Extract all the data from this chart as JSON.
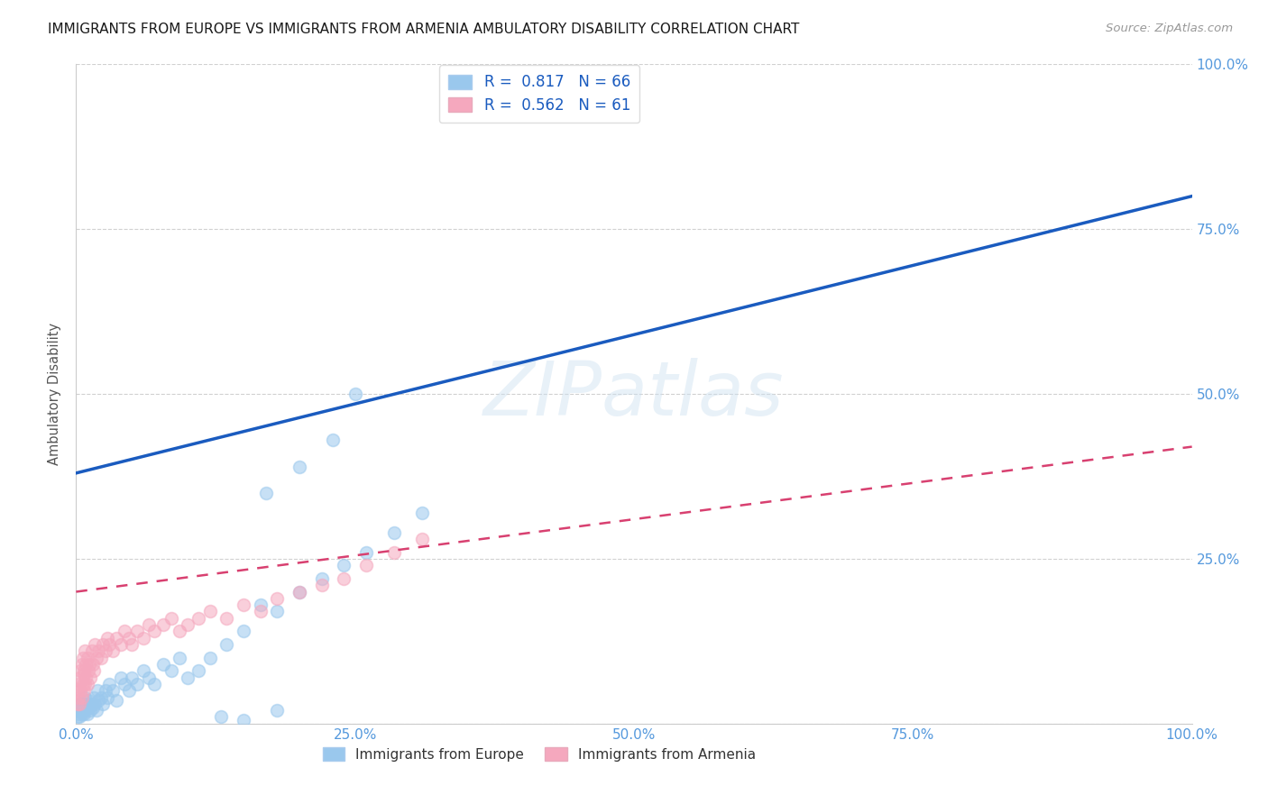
{
  "title": "IMMIGRANTS FROM EUROPE VS IMMIGRANTS FROM ARMENIA AMBULATORY DISABILITY CORRELATION CHART",
  "source": "Source: ZipAtlas.com",
  "ylabel": "Ambulatory Disability",
  "xlim": [
    0,
    1.0
  ],
  "ylim": [
    0,
    1.0
  ],
  "xticks": [
    0.0,
    0.25,
    0.5,
    0.75,
    1.0
  ],
  "xticklabels": [
    "0.0%",
    "25.0%",
    "50.0%",
    "75.0%",
    "100.0%"
  ],
  "yticks": [
    0.0,
    0.25,
    0.5,
    0.75,
    1.0
  ],
  "right_yticklabels": [
    "",
    "25.0%",
    "50.0%",
    "75.0%",
    "100.0%"
  ],
  "europe_color": "#9ac8ed",
  "armenia_color": "#f5a8be",
  "europe_R": 0.817,
  "europe_N": 66,
  "armenia_R": 0.562,
  "armenia_N": 61,
  "europe_line_color": "#1a5bbf",
  "armenia_line_color": "#d84070",
  "legend_label_europe": "Immigrants from Europe",
  "legend_label_armenia": "Immigrants from Armenia",
  "watermark": "ZIPatlas",
  "europe_line_x": [
    0.0,
    1.0
  ],
  "europe_line_y": [
    0.38,
    0.8
  ],
  "armenia_line_x": [
    0.0,
    1.0
  ],
  "armenia_line_y": [
    0.2,
    0.42
  ],
  "europe_x": [
    0.001,
    0.002,
    0.002,
    0.003,
    0.003,
    0.004,
    0.004,
    0.005,
    0.005,
    0.006,
    0.006,
    0.007,
    0.007,
    0.008,
    0.008,
    0.009,
    0.01,
    0.01,
    0.011,
    0.012,
    0.013,
    0.014,
    0.015,
    0.016,
    0.017,
    0.018,
    0.019,
    0.02,
    0.022,
    0.024,
    0.026,
    0.028,
    0.03,
    0.033,
    0.036,
    0.04,
    0.043,
    0.047,
    0.05,
    0.055,
    0.06,
    0.065,
    0.07,
    0.078,
    0.085,
    0.093,
    0.1,
    0.11,
    0.12,
    0.135,
    0.15,
    0.165,
    0.18,
    0.2,
    0.22,
    0.24,
    0.26,
    0.285,
    0.31,
    0.17,
    0.2,
    0.23,
    0.25,
    0.13,
    0.15,
    0.18
  ],
  "europe_y": [
    0.01,
    0.015,
    0.02,
    0.01,
    0.025,
    0.02,
    0.03,
    0.015,
    0.03,
    0.02,
    0.025,
    0.03,
    0.015,
    0.02,
    0.04,
    0.025,
    0.03,
    0.015,
    0.035,
    0.025,
    0.02,
    0.03,
    0.025,
    0.04,
    0.03,
    0.02,
    0.05,
    0.035,
    0.04,
    0.03,
    0.05,
    0.04,
    0.06,
    0.05,
    0.035,
    0.07,
    0.06,
    0.05,
    0.07,
    0.06,
    0.08,
    0.07,
    0.06,
    0.09,
    0.08,
    0.1,
    0.07,
    0.08,
    0.1,
    0.12,
    0.14,
    0.18,
    0.17,
    0.2,
    0.22,
    0.24,
    0.26,
    0.29,
    0.32,
    0.35,
    0.39,
    0.43,
    0.5,
    0.01,
    0.005,
    0.02
  ],
  "armenia_x": [
    0.001,
    0.001,
    0.002,
    0.002,
    0.003,
    0.003,
    0.004,
    0.004,
    0.005,
    0.005,
    0.006,
    0.006,
    0.007,
    0.007,
    0.008,
    0.008,
    0.009,
    0.009,
    0.01,
    0.01,
    0.011,
    0.012,
    0.013,
    0.014,
    0.015,
    0.016,
    0.017,
    0.018,
    0.02,
    0.022,
    0.024,
    0.026,
    0.028,
    0.03,
    0.033,
    0.036,
    0.04,
    0.043,
    0.047,
    0.05,
    0.055,
    0.06,
    0.065,
    0.07,
    0.078,
    0.085,
    0.093,
    0.1,
    0.11,
    0.12,
    0.135,
    0.15,
    0.165,
    0.18,
    0.2,
    0.22,
    0.24,
    0.26,
    0.285,
    0.31,
    0.007
  ],
  "armenia_y": [
    0.03,
    0.05,
    0.04,
    0.06,
    0.03,
    0.07,
    0.05,
    0.08,
    0.04,
    0.09,
    0.06,
    0.1,
    0.05,
    0.08,
    0.06,
    0.11,
    0.07,
    0.09,
    0.06,
    0.1,
    0.08,
    0.09,
    0.07,
    0.11,
    0.09,
    0.08,
    0.12,
    0.1,
    0.11,
    0.1,
    0.12,
    0.11,
    0.13,
    0.12,
    0.11,
    0.13,
    0.12,
    0.14,
    0.13,
    0.12,
    0.14,
    0.13,
    0.15,
    0.14,
    0.15,
    0.16,
    0.14,
    0.15,
    0.16,
    0.17,
    0.16,
    0.18,
    0.17,
    0.19,
    0.2,
    0.21,
    0.22,
    0.24,
    0.26,
    0.28,
    0.075
  ]
}
